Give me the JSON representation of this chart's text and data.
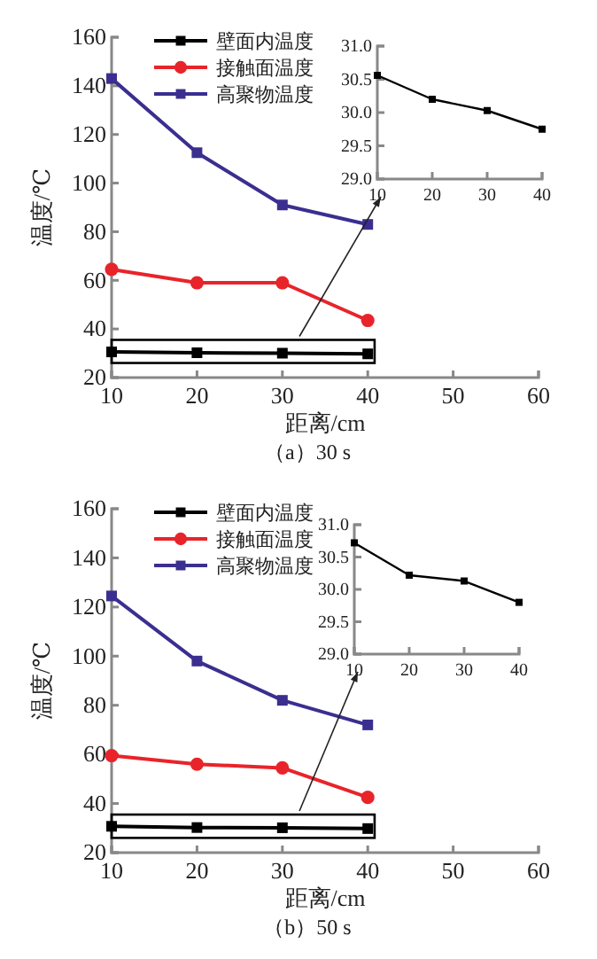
{
  "chart_data": [
    {
      "type": "line",
      "xlabel": "距离/cm",
      "ylabel": "温度/℃",
      "annotations": [
        "（a）30 s"
      ],
      "x": [
        10,
        20,
        30,
        40
      ],
      "xlim": [
        10,
        60
      ],
      "xticks": [
        10,
        20,
        30,
        40,
        50,
        60
      ],
      "ylim": [
        20,
        160
      ],
      "yticks": [
        20,
        40,
        60,
        80,
        100,
        120,
        140,
        160
      ],
      "legend": "top left",
      "series": [
        {
          "name": "壁面内温度",
          "color": "#000000",
          "marker": "square",
          "values": [
            30.56,
            30.2,
            30.03,
            29.75
          ]
        },
        {
          "name": "接触面温度",
          "color": "#e8242a",
          "marker": "circle",
          "values": [
            64.5,
            59,
            59,
            43.5
          ]
        },
        {
          "name": "高聚物温度",
          "color": "#3a2f8f",
          "marker": "square",
          "values": [
            143,
            112.5,
            91,
            83
          ]
        }
      ]
    },
    {
      "type": "line",
      "x": [
        10,
        20,
        30,
        40
      ],
      "xlim": [
        10,
        40
      ],
      "xticks": [
        10,
        20,
        30,
        40
      ],
      "ylim": [
        29,
        31
      ],
      "yticks": [
        {
          "value": 29,
          "label": "29.0"
        },
        {
          "value": 29.5,
          "label": "29.5"
        },
        {
          "value": 30,
          "label": "30.0"
        },
        {
          "value": 30.5,
          "label": "30.5"
        },
        {
          "value": 31,
          "label": "31.0"
        }
      ],
      "marker": "square",
      "series": [
        {
          "color": "#000000",
          "values": [
            30.56,
            30.2,
            30.03,
            29.75
          ]
        }
      ]
    },
    {
      "type": "line",
      "xlabel": "距离/cm",
      "ylabel": "温度/℃",
      "annotations": [
        "（b）50 s"
      ],
      "x": [
        10,
        20,
        30,
        40
      ],
      "xlim": [
        10,
        60
      ],
      "xticks": [
        10,
        20,
        30,
        40,
        50,
        60
      ],
      "ylim": [
        20,
        160
      ],
      "yticks": [
        20,
        40,
        60,
        80,
        100,
        120,
        140,
        160
      ],
      "legend": "top left",
      "series": [
        {
          "name": "壁面内温度",
          "color": "#000000",
          "marker": "square",
          "values": [
            30.72,
            30.22,
            30.13,
            29.8
          ]
        },
        {
          "name": "接触面温度",
          "color": "#e8242a",
          "marker": "circle",
          "values": [
            59.5,
            56,
            54.5,
            42.5
          ]
        },
        {
          "name": "高聚物温度",
          "color": "#3a2f8f",
          "marker": "square",
          "values": [
            124.5,
            98,
            82,
            72
          ]
        }
      ]
    },
    {
      "type": "line",
      "x": [
        10,
        20,
        30,
        40
      ],
      "xlim": [
        10,
        40
      ],
      "xticks": [
        10,
        20,
        30,
        40
      ],
      "ylim": [
        29,
        31
      ],
      "yticks": [
        {
          "value": 29,
          "label": "29.0"
        },
        {
          "value": 29.5,
          "label": "29.5"
        },
        {
          "value": 30,
          "label": "30.0"
        },
        {
          "value": 30.5,
          "label": "30.5"
        },
        {
          "value": 31,
          "label": "31.0"
        }
      ],
      "marker": "square",
      "series": [
        {
          "color": "#000000",
          "values": [
            30.72,
            30.22,
            30.13,
            29.8
          ]
        }
      ]
    }
  ]
}
